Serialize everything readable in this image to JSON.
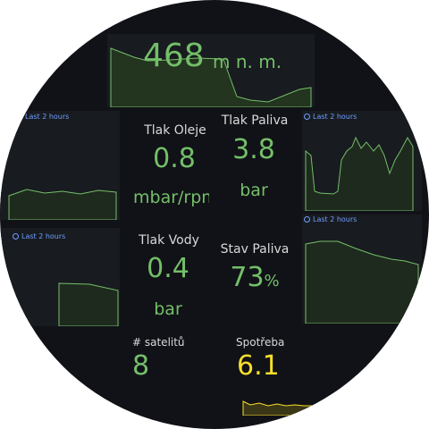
{
  "altitude": {
    "value": "468",
    "unit": "m n. m."
  },
  "time_ranges": [
    "Last 2 hours",
    "Last 2 hours",
    "Last 2 hours",
    "Last 2 hours"
  ],
  "stats": [
    {
      "title": "Tlak Oleje",
      "value": "0.8",
      "unit": "mbar/rpm"
    },
    {
      "title": "Tlak Paliva",
      "value": "3.8",
      "unit": "bar"
    },
    {
      "title": "Tlak Vody",
      "value": "0.4",
      "unit": "bar"
    },
    {
      "title": "Stav Paliva",
      "value": "73",
      "unit": "%"
    },
    {
      "title": "# satelitů",
      "value": "8"
    },
    {
      "title": "Spotřeba",
      "value": "6.1"
    }
  ]
}
